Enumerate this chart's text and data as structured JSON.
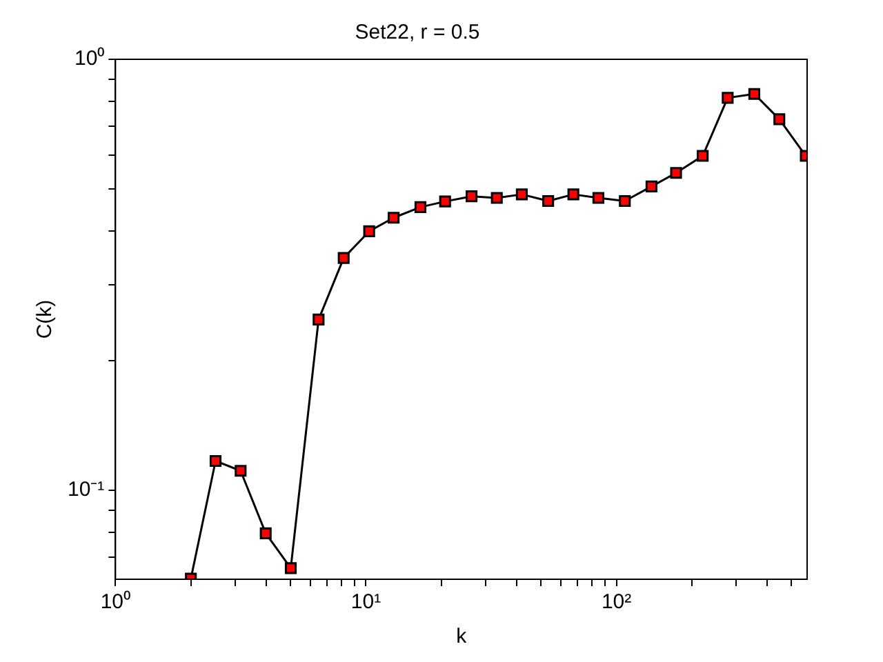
{
  "chart_data": {
    "type": "line",
    "title": "Set22, r = 0.5",
    "xlabel": "k",
    "ylabel": "C(k)",
    "log": "xy",
    "grid": false,
    "legend": false,
    "marker": "square",
    "line_style": "solid",
    "xlim": [
      1,
      577
    ],
    "ylim": [
      0.0622,
      1
    ],
    "xticks": [
      {
        "value": 1,
        "label": "10⁰"
      },
      {
        "value": 2,
        "label": null
      },
      {
        "value": 3,
        "label": null
      },
      {
        "value": 4,
        "label": null
      },
      {
        "value": 5,
        "label": null
      },
      {
        "value": 6,
        "label": null
      },
      {
        "value": 7,
        "label": null
      },
      {
        "value": 8,
        "label": null
      },
      {
        "value": 9,
        "label": null
      },
      {
        "value": 10,
        "label": "10¹"
      },
      {
        "value": 20,
        "label": null
      },
      {
        "value": 30,
        "label": null
      },
      {
        "value": 40,
        "label": null
      },
      {
        "value": 50,
        "label": null
      },
      {
        "value": 60,
        "label": null
      },
      {
        "value": 70,
        "label": null
      },
      {
        "value": 80,
        "label": null
      },
      {
        "value": 90,
        "label": null
      },
      {
        "value": 100,
        "label": "10²"
      },
      {
        "value": 200,
        "label": null
      },
      {
        "value": 300,
        "label": null
      },
      {
        "value": 400,
        "label": null
      },
      {
        "value": 500,
        "label": null
      }
    ],
    "yticks": [
      {
        "value": 0.07,
        "label": null
      },
      {
        "value": 0.08,
        "label": null
      },
      {
        "value": 0.09,
        "label": null
      },
      {
        "value": 0.1,
        "label": "10⁻¹"
      },
      {
        "value": 0.2,
        "label": null
      },
      {
        "value": 0.3,
        "label": null
      },
      {
        "value": 0.4,
        "label": null
      },
      {
        "value": 0.5,
        "label": null
      },
      {
        "value": 0.6,
        "label": null
      },
      {
        "value": 0.7,
        "label": null
      },
      {
        "value": 0.8,
        "label": null
      },
      {
        "value": 0.9,
        "label": null
      },
      {
        "value": 1,
        "label": "10⁰"
      }
    ],
    "x": [
      2.0,
      2.51,
      3.16,
      3.98,
      5.01,
      6.47,
      8.15,
      10.3,
      12.9,
      16.5,
      20.7,
      26.4,
      33.3,
      41.9,
      53.4,
      67.3,
      84.7,
      108,
      138,
      173,
      221,
      278,
      355,
      447,
      570
    ],
    "series": [
      {
        "color": "#ff0000",
        "values": [
          0.0624,
          0.117,
          0.111,
          0.0795,
          0.066,
          0.249,
          0.346,
          0.399,
          0.429,
          0.454,
          0.468,
          0.481,
          0.477,
          0.486,
          0.469,
          0.486,
          0.477,
          0.469,
          0.507,
          0.545,
          0.597,
          0.814,
          0.831,
          0.726,
          0.597
        ]
      }
    ]
  }
}
